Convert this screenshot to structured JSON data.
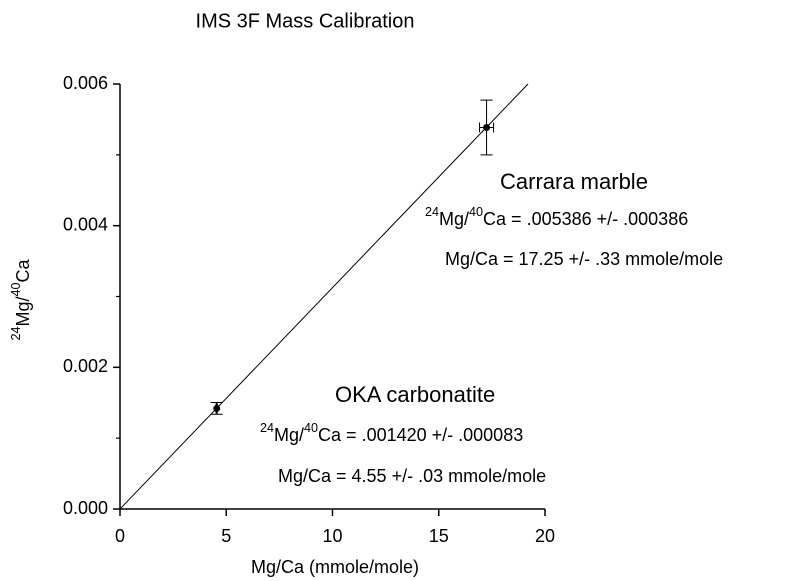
{
  "chart_data": {
    "type": "scatter",
    "title": "IMS 3F Mass Calibration",
    "x_label": "Mg/Ca (mmole/mole)",
    "y_label": [
      {
        "text": "24",
        "sup": true
      },
      {
        "text": "Mg/"
      },
      {
        "text": "40",
        "sup": true
      },
      {
        "text": "Ca"
      }
    ],
    "xlim": [
      0,
      20
    ],
    "ylim": [
      0,
      0.006
    ],
    "xticks": [
      0,
      5,
      10,
      15,
      20
    ],
    "yticks": [
      {
        "value": 0,
        "label": "0.000"
      },
      0.002,
      0.004,
      0.006
    ],
    "yminorticks": [
      0.001,
      0.003,
      0.005
    ],
    "color": "#000000",
    "points": {
      "x": [
        4.55,
        17.25
      ],
      "y": [
        0.00142,
        0.005386
      ],
      "xerr": [
        0.03,
        0.33
      ],
      "yerr": [
        8.3e-05,
        0.000386
      ]
    },
    "fit_line": {
      "x": [
        0,
        19.2
      ],
      "y": [
        0,
        0.006
      ]
    },
    "annotations": [
      [
        {
          "text": "Carrara marble"
        }
      ],
      [
        {
          "text": "24",
          "sup": true
        },
        {
          "text": "Mg/"
        },
        {
          "text": "40",
          "sup": true
        },
        {
          "text": "Ca = .005386 +/- .000386"
        }
      ],
      [
        {
          "text": "Mg/Ca = 17.25 +/- .33 mmole/mole"
        }
      ],
      [
        {
          "text": "OKA carbonatite"
        }
      ],
      [
        {
          "text": "24",
          "sup": true
        },
        {
          "text": "Mg/"
        },
        {
          "text": "40",
          "sup": true
        },
        {
          "text": "Ca = .001420 +/- .000083"
        }
      ],
      [
        {
          "text": "Mg/Ca = 4.55 +/- .03 mmole/mole"
        }
      ]
    ]
  }
}
